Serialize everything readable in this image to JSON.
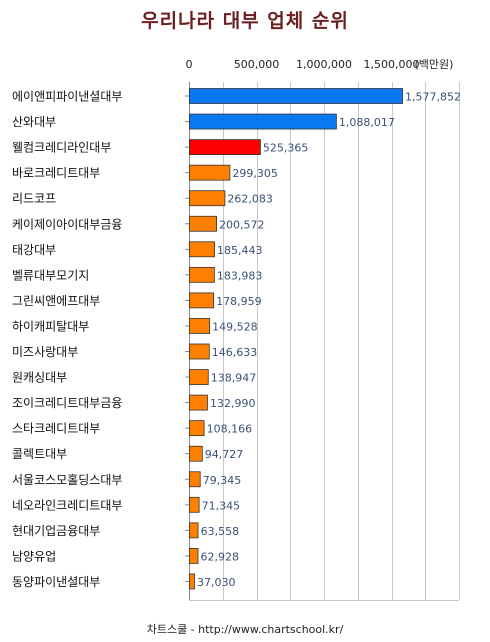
{
  "chart_data": {
    "type": "bar",
    "orientation": "horizontal",
    "title": "우리나라 대부 업체 순위",
    "unit_label": "(백만원)",
    "footer": "차트스쿨 - http://www.chartschool.kr/",
    "xlim": [
      0,
      2000000
    ],
    "x_ticks": [
      "0",
      "500,000",
      "1,000,000",
      "1,500,000"
    ],
    "x_tick_values": [
      0,
      500000,
      1000000,
      1500000
    ],
    "grid": true,
    "colors": {
      "blue": "#0a78f0",
      "red": "#ff0000",
      "orange": "#ff8000",
      "grid": "#c8c8c8"
    },
    "categories": [
      "에이앤피파이낸셜대부",
      "산와대부",
      "웰컴크레디라인대부",
      "바로크레디트대부",
      "리드코프",
      "케이제이아이대부금융",
      "태강대부",
      "벨류대부모기지",
      "그린씨앤에프대부",
      "하이캐피탈대부",
      "미즈사랑대부",
      "원캐싱대부",
      "조이크레디트대부금융",
      "스타크레디트대부",
      "콜렉트대부",
      "서울코스모홀딩스대부",
      "네오라인크레디트대부",
      "현대기업금융대부",
      "남양유업",
      "동양파이낸셜대부"
    ],
    "values": [
      1577852,
      1088017,
      525365,
      299305,
      262083,
      200572,
      185443,
      183983,
      178959,
      149528,
      146633,
      138947,
      132990,
      108166,
      94727,
      79345,
      71345,
      63558,
      62928,
      37030
    ],
    "value_labels": [
      "1,577,852",
      "1,088,017",
      "525,365",
      "299,305",
      "262,083",
      "200,572",
      "185,443",
      "183,983",
      "178,959",
      "149,528",
      "146,633",
      "138,947",
      "132,990",
      "108,166",
      "94,727",
      "79,345",
      "71,345",
      "63,558",
      "62,928",
      "37,030"
    ],
    "bar_colors": [
      "blue",
      "blue",
      "red",
      "orange",
      "orange",
      "orange",
      "orange",
      "orange",
      "orange",
      "orange",
      "orange",
      "orange",
      "orange",
      "orange",
      "orange",
      "orange",
      "orange",
      "orange",
      "orange",
      "orange"
    ]
  }
}
